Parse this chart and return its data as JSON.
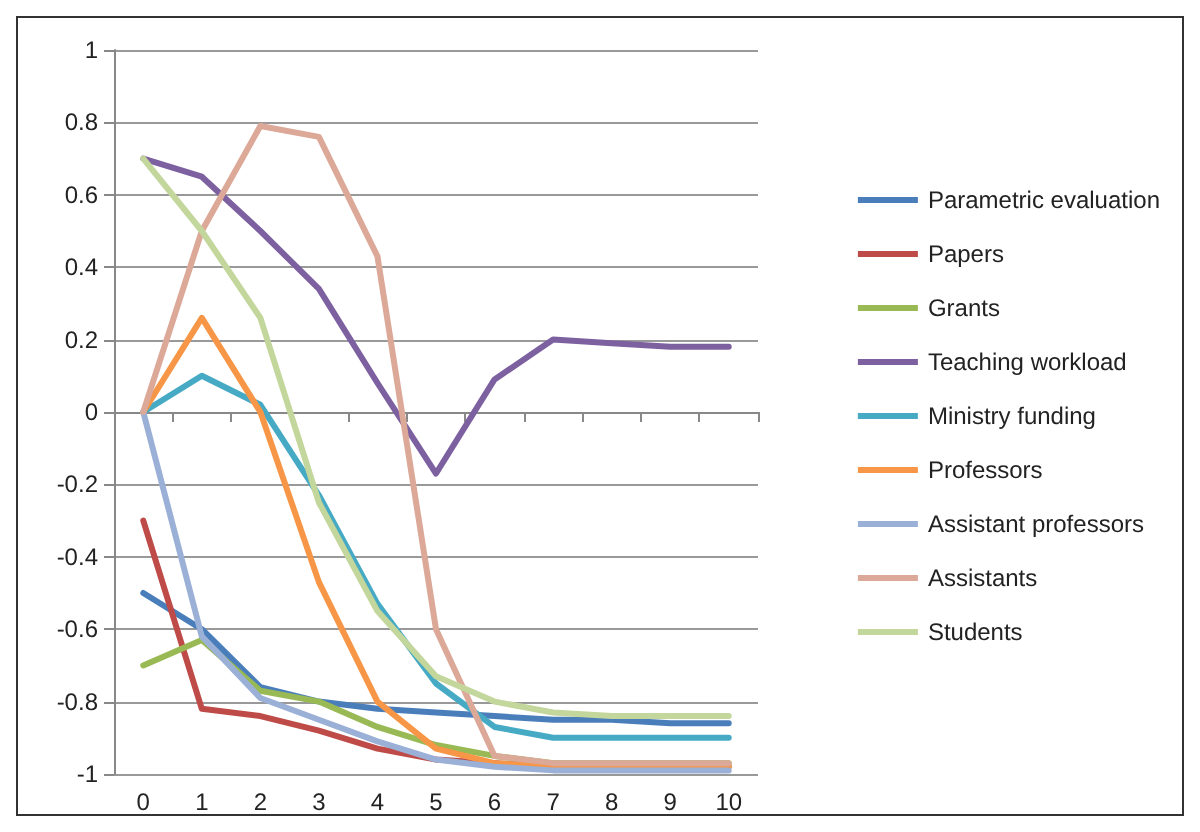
{
  "chart_data": {
    "type": "line",
    "categories": [
      "0",
      "1",
      "2",
      "3",
      "4",
      "5",
      "6",
      "7",
      "8",
      "9",
      "10"
    ],
    "ylim": [
      -1,
      1
    ],
    "yticks": [
      -1,
      -0.8,
      -0.6,
      -0.4,
      -0.2,
      0,
      0.2,
      0.4,
      0.6,
      0.8,
      1
    ],
    "grid": "y",
    "legend": "right",
    "marker": "none",
    "line_style": "solid",
    "series": [
      {
        "name": "Parametric evaluation",
        "color": "#4a7ebb",
        "values": [
          -0.5,
          -0.6,
          -0.76,
          -0.8,
          -0.82,
          -0.83,
          -0.84,
          -0.85,
          -0.85,
          -0.86,
          -0.86
        ]
      },
      {
        "name": "Papers",
        "color": "#be4b48",
        "values": [
          -0.3,
          -0.82,
          -0.84,
          -0.88,
          -0.93,
          -0.96,
          -0.97,
          -0.98,
          -0.98,
          -0.98,
          -0.98
        ]
      },
      {
        "name": "Grants",
        "color": "#98b954",
        "values": [
          -0.7,
          -0.63,
          -0.77,
          -0.8,
          -0.87,
          -0.92,
          -0.95,
          -0.97,
          -0.97,
          -0.97,
          -0.97
        ]
      },
      {
        "name": "Teaching workload",
        "color": "#7d60a0",
        "values": [
          0.7,
          0.65,
          0.5,
          0.34,
          0.08,
          -0.17,
          0.09,
          0.2,
          0.19,
          0.18,
          0.18
        ]
      },
      {
        "name": "Ministry funding",
        "color": "#46aac5",
        "values": [
          0,
          0.1,
          0.02,
          -0.23,
          -0.53,
          -0.75,
          -0.87,
          -0.9,
          -0.9,
          -0.9,
          -0.9
        ]
      },
      {
        "name": "Professors",
        "color": "#f79646",
        "values": [
          0,
          0.26,
          0,
          -0.47,
          -0.8,
          -0.93,
          -0.97,
          -0.98,
          -0.98,
          -0.98,
          -0.98
        ]
      },
      {
        "name": "Assistant professors",
        "color": "#9bb0d6",
        "values": [
          0,
          -0.62,
          -0.79,
          -0.85,
          -0.91,
          -0.96,
          -0.98,
          -0.99,
          -0.99,
          -0.99,
          -0.99
        ]
      },
      {
        "name": "Assistants",
        "color": "#dca898",
        "values": [
          0,
          0.5,
          0.79,
          0.76,
          0.43,
          -0.6,
          -0.95,
          -0.97,
          -0.97,
          -0.97,
          -0.97
        ]
      },
      {
        "name": "Students",
        "color": "#c3d69b",
        "values": [
          0.7,
          0.5,
          0.26,
          -0.25,
          -0.55,
          -0.73,
          -0.8,
          -0.83,
          -0.84,
          -0.84,
          -0.84
        ]
      }
    ]
  }
}
